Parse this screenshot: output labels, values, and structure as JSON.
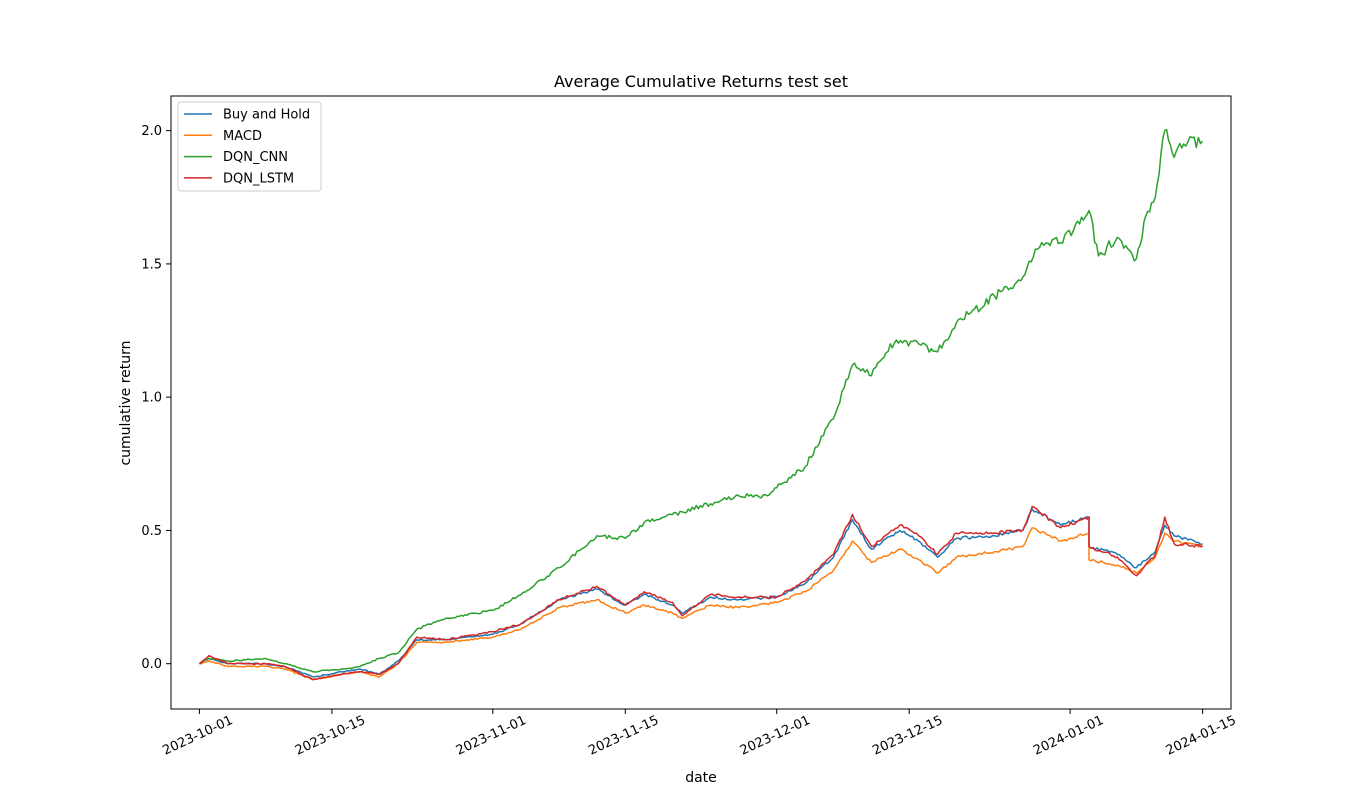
{
  "chart_data": {
    "type": "line",
    "title": "Average Cumulative Returns test set",
    "xlabel": "date",
    "ylabel": "cumulative return",
    "x_range": [
      "2023-09-28",
      "2024-01-18"
    ],
    "ylim": [
      -0.17,
      2.13
    ],
    "x_ticks": [
      "2023-10-01",
      "2023-10-15",
      "2023-11-01",
      "2023-11-15",
      "2023-12-01",
      "2023-12-15",
      "2024-01-01",
      "2024-01-15"
    ],
    "y_ticks": [
      "0.0",
      "0.5",
      "1.0",
      "1.5",
      "2.0"
    ],
    "grid": false,
    "legend_position": "upper-left",
    "series": [
      {
        "name": "Buy and Hold",
        "color": "#1f77b4",
        "points": [
          [
            "2023-10-01",
            0.0
          ],
          [
            "2023-10-02",
            0.02
          ],
          [
            "2023-10-04",
            0.0
          ],
          [
            "2023-10-08",
            0.0
          ],
          [
            "2023-10-10",
            -0.01
          ],
          [
            "2023-10-13",
            -0.05
          ],
          [
            "2023-10-16",
            -0.03
          ],
          [
            "2023-10-18",
            -0.02
          ],
          [
            "2023-10-20",
            -0.04
          ],
          [
            "2023-10-22",
            0.01
          ],
          [
            "2023-10-24",
            0.09
          ],
          [
            "2023-10-27",
            0.09
          ],
          [
            "2023-11-01",
            0.11
          ],
          [
            "2023-11-04",
            0.15
          ],
          [
            "2023-11-08",
            0.24
          ],
          [
            "2023-11-12",
            0.28
          ],
          [
            "2023-11-15",
            0.22
          ],
          [
            "2023-11-17",
            0.26
          ],
          [
            "2023-11-20",
            0.22
          ],
          [
            "2023-11-21",
            0.19
          ],
          [
            "2023-11-24",
            0.25
          ],
          [
            "2023-11-27",
            0.24
          ],
          [
            "2023-12-01",
            0.25
          ],
          [
            "2023-12-04",
            0.3
          ],
          [
            "2023-12-07",
            0.4
          ],
          [
            "2023-12-09",
            0.54
          ],
          [
            "2023-12-11",
            0.43
          ],
          [
            "2023-12-14",
            0.5
          ],
          [
            "2023-12-16",
            0.46
          ],
          [
            "2023-12-18",
            0.4
          ],
          [
            "2023-12-20",
            0.47
          ],
          [
            "2023-12-24",
            0.48
          ],
          [
            "2023-12-27",
            0.5
          ],
          [
            "2023-12-28",
            0.58
          ],
          [
            "2023-12-31",
            0.52
          ],
          [
            "2024-01-03",
            0.55
          ],
          [
            "2024-01-03",
            0.44
          ],
          [
            "2024-01-06",
            0.41
          ],
          [
            "2024-01-08",
            0.36
          ],
          [
            "2024-01-10",
            0.42
          ],
          [
            "2024-01-11",
            0.52
          ],
          [
            "2024-01-12",
            0.48
          ],
          [
            "2024-01-15",
            0.45
          ]
        ]
      },
      {
        "name": "MACD",
        "color": "#ff7f0e",
        "points": [
          [
            "2023-10-01",
            0.0
          ],
          [
            "2023-10-02",
            0.01
          ],
          [
            "2023-10-04",
            -0.01
          ],
          [
            "2023-10-08",
            -0.01
          ],
          [
            "2023-10-10",
            -0.02
          ],
          [
            "2023-10-13",
            -0.06
          ],
          [
            "2023-10-16",
            -0.04
          ],
          [
            "2023-10-18",
            -0.03
          ],
          [
            "2023-10-20",
            -0.05
          ],
          [
            "2023-10-22",
            0.0
          ],
          [
            "2023-10-24",
            0.08
          ],
          [
            "2023-10-27",
            0.08
          ],
          [
            "2023-11-01",
            0.1
          ],
          [
            "2023-11-04",
            0.13
          ],
          [
            "2023-11-08",
            0.21
          ],
          [
            "2023-11-12",
            0.24
          ],
          [
            "2023-11-15",
            0.19
          ],
          [
            "2023-11-17",
            0.22
          ],
          [
            "2023-11-20",
            0.19
          ],
          [
            "2023-11-21",
            0.17
          ],
          [
            "2023-11-24",
            0.22
          ],
          [
            "2023-11-27",
            0.21
          ],
          [
            "2023-12-01",
            0.23
          ],
          [
            "2023-12-04",
            0.27
          ],
          [
            "2023-12-07",
            0.35
          ],
          [
            "2023-12-09",
            0.46
          ],
          [
            "2023-12-11",
            0.38
          ],
          [
            "2023-12-14",
            0.43
          ],
          [
            "2023-12-16",
            0.39
          ],
          [
            "2023-12-18",
            0.34
          ],
          [
            "2023-12-20",
            0.4
          ],
          [
            "2023-12-24",
            0.42
          ],
          [
            "2023-12-27",
            0.44
          ],
          [
            "2023-12-28",
            0.51
          ],
          [
            "2023-12-31",
            0.46
          ],
          [
            "2024-01-03",
            0.49
          ],
          [
            "2024-01-03",
            0.39
          ],
          [
            "2024-01-06",
            0.37
          ],
          [
            "2024-01-08",
            0.34
          ],
          [
            "2024-01-10",
            0.4
          ],
          [
            "2024-01-11",
            0.49
          ],
          [
            "2024-01-12",
            0.46
          ],
          [
            "2024-01-15",
            0.44
          ]
        ]
      },
      {
        "name": "DQN_CNN",
        "color": "#2ca02c",
        "points": [
          [
            "2023-10-01",
            0.0
          ],
          [
            "2023-10-02",
            0.02
          ],
          [
            "2023-10-04",
            0.01
          ],
          [
            "2023-10-08",
            0.02
          ],
          [
            "2023-10-10",
            0.0
          ],
          [
            "2023-10-13",
            -0.03
          ],
          [
            "2023-10-16",
            -0.02
          ],
          [
            "2023-10-18",
            -0.01
          ],
          [
            "2023-10-20",
            0.02
          ],
          [
            "2023-10-22",
            0.04
          ],
          [
            "2023-10-24",
            0.13
          ],
          [
            "2023-10-27",
            0.17
          ],
          [
            "2023-11-01",
            0.2
          ],
          [
            "2023-11-04",
            0.26
          ],
          [
            "2023-11-08",
            0.36
          ],
          [
            "2023-11-12",
            0.48
          ],
          [
            "2023-11-15",
            0.47
          ],
          [
            "2023-11-17",
            0.53
          ],
          [
            "2023-11-21",
            0.57
          ],
          [
            "2023-11-24",
            0.6
          ],
          [
            "2023-11-27",
            0.63
          ],
          [
            "2023-11-30",
            0.63
          ],
          [
            "2023-12-01",
            0.66
          ],
          [
            "2023-12-04",
            0.74
          ],
          [
            "2023-12-07",
            0.92
          ],
          [
            "2023-12-09",
            1.12
          ],
          [
            "2023-12-11",
            1.08
          ],
          [
            "2023-12-13",
            1.2
          ],
          [
            "2023-12-16",
            1.2
          ],
          [
            "2023-12-18",
            1.17
          ],
          [
            "2023-12-20",
            1.28
          ],
          [
            "2023-12-24",
            1.38
          ],
          [
            "2023-12-27",
            1.45
          ],
          [
            "2023-12-29",
            1.58
          ],
          [
            "2023-12-31",
            1.58
          ],
          [
            "2024-01-02",
            1.65
          ],
          [
            "2024-01-03",
            1.7
          ],
          [
            "2024-01-04",
            1.53
          ],
          [
            "2024-01-06",
            1.6
          ],
          [
            "2024-01-08",
            1.52
          ],
          [
            "2024-01-09",
            1.68
          ],
          [
            "2024-01-10",
            1.75
          ],
          [
            "2024-01-11",
            2.0
          ],
          [
            "2024-01-12",
            1.9
          ],
          [
            "2024-01-13",
            1.95
          ],
          [
            "2024-01-15",
            1.96
          ]
        ]
      },
      {
        "name": "DQN_LSTM",
        "color": "#d62728",
        "points": [
          [
            "2023-10-01",
            0.0
          ],
          [
            "2023-10-02",
            0.03
          ],
          [
            "2023-10-04",
            0.0
          ],
          [
            "2023-10-08",
            0.0
          ],
          [
            "2023-10-10",
            -0.01
          ],
          [
            "2023-10-13",
            -0.06
          ],
          [
            "2023-10-16",
            -0.04
          ],
          [
            "2023-10-18",
            -0.03
          ],
          [
            "2023-10-20",
            -0.04
          ],
          [
            "2023-10-22",
            0.0
          ],
          [
            "2023-10-24",
            0.1
          ],
          [
            "2023-10-27",
            0.09
          ],
          [
            "2023-11-01",
            0.12
          ],
          [
            "2023-11-04",
            0.15
          ],
          [
            "2023-11-08",
            0.24
          ],
          [
            "2023-11-12",
            0.29
          ],
          [
            "2023-11-15",
            0.22
          ],
          [
            "2023-11-17",
            0.27
          ],
          [
            "2023-11-20",
            0.23
          ],
          [
            "2023-11-21",
            0.18
          ],
          [
            "2023-11-24",
            0.26
          ],
          [
            "2023-11-27",
            0.25
          ],
          [
            "2023-12-01",
            0.25
          ],
          [
            "2023-12-04",
            0.31
          ],
          [
            "2023-12-07",
            0.41
          ],
          [
            "2023-12-09",
            0.56
          ],
          [
            "2023-12-11",
            0.44
          ],
          [
            "2023-12-14",
            0.52
          ],
          [
            "2023-12-16",
            0.48
          ],
          [
            "2023-12-18",
            0.41
          ],
          [
            "2023-12-20",
            0.49
          ],
          [
            "2023-12-24",
            0.49
          ],
          [
            "2023-12-27",
            0.5
          ],
          [
            "2023-12-28",
            0.59
          ],
          [
            "2023-12-31",
            0.51
          ],
          [
            "2024-01-03",
            0.55
          ],
          [
            "2024-01-03",
            0.44
          ],
          [
            "2024-01-06",
            0.4
          ],
          [
            "2024-01-08",
            0.33
          ],
          [
            "2024-01-10",
            0.41
          ],
          [
            "2024-01-11",
            0.55
          ],
          [
            "2024-01-12",
            0.45
          ],
          [
            "2024-01-15",
            0.44
          ]
        ]
      }
    ]
  }
}
